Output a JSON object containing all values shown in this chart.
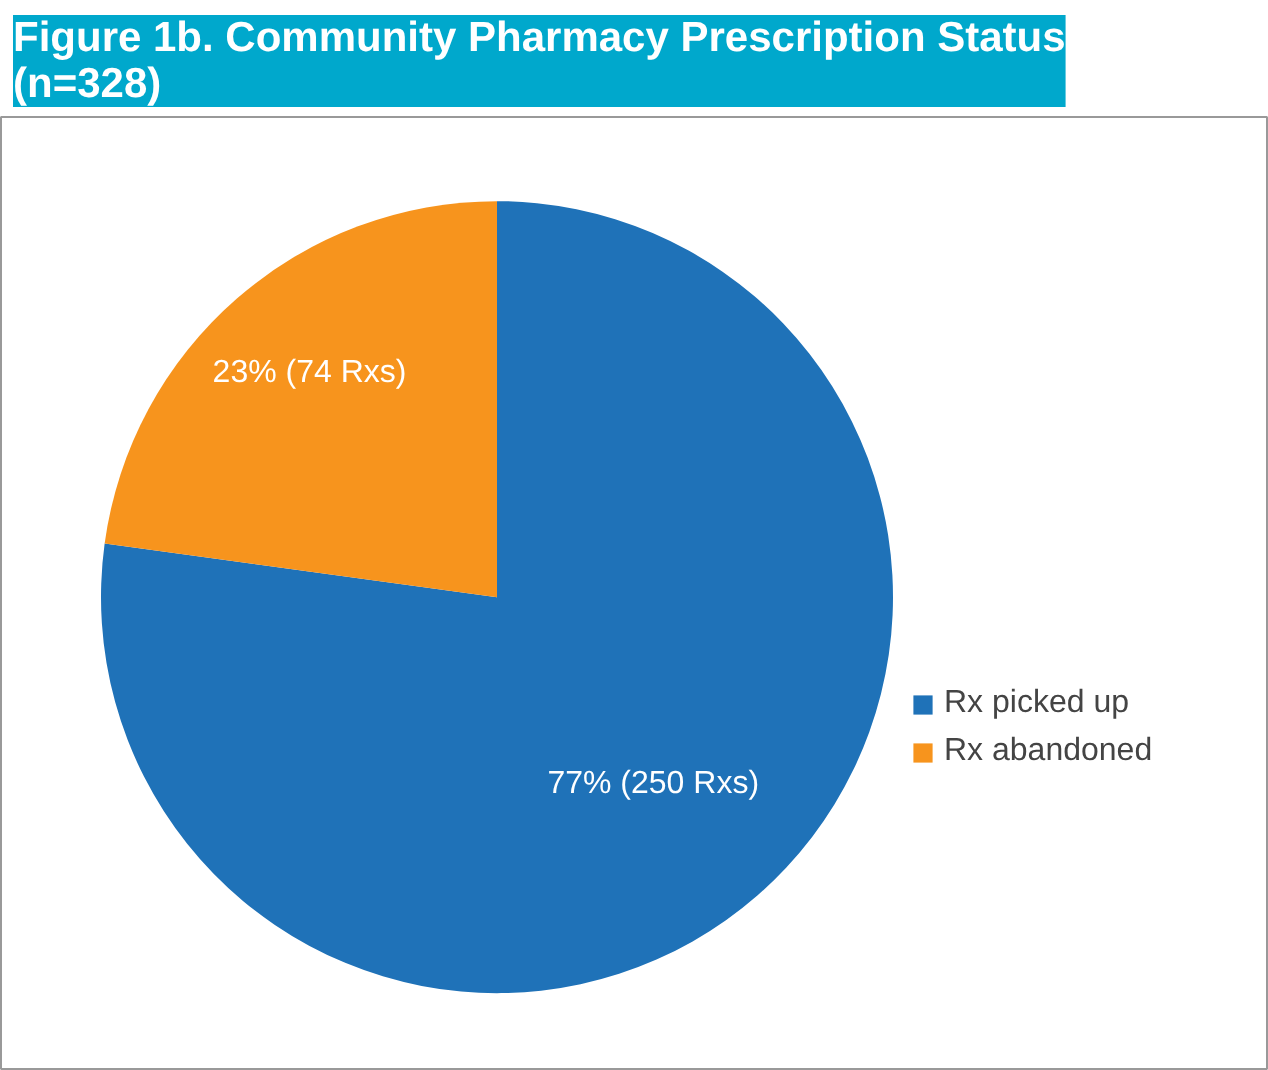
{
  "chart_data": {
    "type": "pie",
    "title": "Figure 1b. Community Pharmacy Prescription Status (n=328)",
    "categories": [
      "Rx picked up",
      "Rx abandoned"
    ],
    "values": [
      250,
      74
    ],
    "colors": [
      "#1f72b8",
      "#f7941d"
    ],
    "value_labels": [
      "77% (250 Rxs)",
      "23% (74 Rxs)"
    ],
    "legend": "right"
  }
}
